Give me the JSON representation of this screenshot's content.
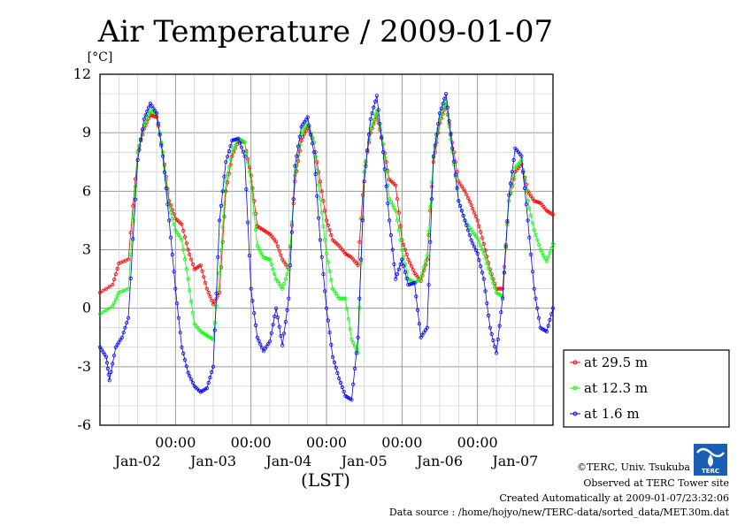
{
  "chart_data": {
    "type": "line",
    "title": "Air Temperature / 2009-01-07",
    "ylabel": "[°C]",
    "xlabel": "(LST)",
    "ylim": [
      -6,
      12
    ],
    "y_ticks": [
      "12",
      "9",
      "6",
      "3",
      "0",
      "-3",
      "-6"
    ],
    "x_time_ticks": [
      "00:00",
      "00:00",
      "00:00",
      "00:00",
      "00:00"
    ],
    "x_date_ticks": [
      "Jan-02",
      "Jan-03",
      "Jan-04",
      "Jan-05",
      "Jan-06",
      "Jan-07"
    ],
    "x_range_hours": [
      0,
      144
    ],
    "grid": true,
    "legend_position": "right",
    "series": [
      {
        "name": "at 29.5 m",
        "color": "#ff0000",
        "points": [
          [
            0,
            0.8
          ],
          [
            4,
            1.2
          ],
          [
            6,
            2.3
          ],
          [
            9,
            2.5
          ],
          [
            12,
            8.0
          ],
          [
            14,
            9.2
          ],
          [
            16,
            9.9
          ],
          [
            18,
            9.8
          ],
          [
            20,
            8.0
          ],
          [
            22,
            5.5
          ],
          [
            24,
            4.6
          ],
          [
            26,
            4.3
          ],
          [
            28,
            3.0
          ],
          [
            30,
            2.0
          ],
          [
            32,
            2.2
          ],
          [
            34,
            1.0
          ],
          [
            36,
            0.2
          ],
          [
            38,
            0.8
          ],
          [
            40,
            6.0
          ],
          [
            42,
            7.8
          ],
          [
            44,
            8.6
          ],
          [
            46,
            8.5
          ],
          [
            48,
            6.8
          ],
          [
            50,
            4.2
          ],
          [
            52,
            4.0
          ],
          [
            54,
            3.8
          ],
          [
            56,
            3.4
          ],
          [
            58,
            2.5
          ],
          [
            60,
            2.0
          ],
          [
            62,
            6.5
          ],
          [
            64,
            8.6
          ],
          [
            66,
            9.3
          ],
          [
            68,
            8.5
          ],
          [
            70,
            6.5
          ],
          [
            72,
            4.5
          ],
          [
            74,
            3.5
          ],
          [
            76,
            3.2
          ],
          [
            78,
            2.8
          ],
          [
            80,
            2.6
          ],
          [
            82,
            2.2
          ],
          [
            84,
            7.0
          ],
          [
            86,
            9.0
          ],
          [
            88,
            9.9
          ],
          [
            90,
            8.4
          ],
          [
            92,
            6.6
          ],
          [
            94,
            6.3
          ],
          [
            96,
            3.5
          ],
          [
            98,
            2.5
          ],
          [
            100,
            1.8
          ],
          [
            102,
            1.4
          ],
          [
            104,
            2.5
          ],
          [
            106,
            7.5
          ],
          [
            108,
            9.5
          ],
          [
            110,
            10.4
          ],
          [
            112,
            8.5
          ],
          [
            114,
            6.5
          ],
          [
            116,
            6.0
          ],
          [
            118,
            5.3
          ],
          [
            120,
            4.5
          ],
          [
            122,
            3.3
          ],
          [
            124,
            2.0
          ],
          [
            126,
            1.0
          ],
          [
            128,
            1.0
          ],
          [
            130,
            5.5
          ],
          [
            132,
            7.0
          ],
          [
            134,
            7.4
          ],
          [
            136,
            6.0
          ],
          [
            138,
            5.5
          ],
          [
            140,
            5.4
          ],
          [
            142,
            5.0
          ],
          [
            144,
            4.8
          ]
        ]
      },
      {
        "name": "at 12.3 m",
        "color": "#00ff00",
        "points": [
          [
            0,
            -0.3
          ],
          [
            4,
            0.1
          ],
          [
            6,
            0.8
          ],
          [
            9,
            1.0
          ],
          [
            12,
            8.0
          ],
          [
            14,
            9.4
          ],
          [
            16,
            10.1
          ],
          [
            18,
            10.0
          ],
          [
            20,
            8.0
          ],
          [
            22,
            5.2
          ],
          [
            24,
            4.0
          ],
          [
            26,
            3.5
          ],
          [
            28,
            1.5
          ],
          [
            30,
            -0.8
          ],
          [
            32,
            -1.2
          ],
          [
            34,
            -1.4
          ],
          [
            36,
            -1.6
          ],
          [
            38,
            1.8
          ],
          [
            40,
            6.5
          ],
          [
            42,
            8.0
          ],
          [
            44,
            8.7
          ],
          [
            46,
            8.5
          ],
          [
            48,
            6.5
          ],
          [
            50,
            3.2
          ],
          [
            52,
            2.6
          ],
          [
            54,
            2.5
          ],
          [
            56,
            1.5
          ],
          [
            58,
            1.0
          ],
          [
            60,
            2.0
          ],
          [
            62,
            6.8
          ],
          [
            64,
            8.9
          ],
          [
            66,
            9.5
          ],
          [
            68,
            8.5
          ],
          [
            70,
            5.6
          ],
          [
            72,
            2.8
          ],
          [
            74,
            1.0
          ],
          [
            76,
            0.5
          ],
          [
            78,
            0.5
          ],
          [
            80,
            -1.6
          ],
          [
            82,
            -2.3
          ],
          [
            84,
            7.0
          ],
          [
            86,
            9.2
          ],
          [
            88,
            10.1
          ],
          [
            90,
            8.4
          ],
          [
            92,
            5.6
          ],
          [
            94,
            5.0
          ],
          [
            96,
            3.0
          ],
          [
            98,
            1.5
          ],
          [
            100,
            1.3
          ],
          [
            102,
            1.5
          ],
          [
            104,
            2.7
          ],
          [
            106,
            7.7
          ],
          [
            108,
            9.7
          ],
          [
            110,
            10.6
          ],
          [
            112,
            8.0
          ],
          [
            114,
            5.5
          ],
          [
            116,
            4.5
          ],
          [
            118,
            4.0
          ],
          [
            120,
            3.6
          ],
          [
            122,
            2.8
          ],
          [
            124,
            1.8
          ],
          [
            126,
            0.8
          ],
          [
            128,
            0.6
          ],
          [
            130,
            5.5
          ],
          [
            132,
            7.2
          ],
          [
            134,
            7.6
          ],
          [
            136,
            5.5
          ],
          [
            138,
            4.0
          ],
          [
            140,
            3.0
          ],
          [
            142,
            2.4
          ],
          [
            144,
            3.3
          ]
        ]
      },
      {
        "name": "at 1.6 m",
        "color": "#0000ff",
        "points": [
          [
            0,
            -2.0
          ],
          [
            2,
            -2.5
          ],
          [
            3,
            -3.7
          ],
          [
            5,
            -2.0
          ],
          [
            7,
            -1.5
          ],
          [
            9,
            -0.5
          ],
          [
            12,
            7.6
          ],
          [
            14,
            9.7
          ],
          [
            16,
            10.5
          ],
          [
            18,
            10.0
          ],
          [
            20,
            7.8
          ],
          [
            22,
            4.5
          ],
          [
            24,
            1.0
          ],
          [
            26,
            -2.0
          ],
          [
            28,
            -3.3
          ],
          [
            30,
            -4.0
          ],
          [
            32,
            -4.3
          ],
          [
            34,
            -4.1
          ],
          [
            36,
            -3.0
          ],
          [
            38,
            4.5
          ],
          [
            40,
            7.5
          ],
          [
            42,
            8.6
          ],
          [
            44,
            8.7
          ],
          [
            46,
            7.8
          ],
          [
            48,
            1.0
          ],
          [
            50,
            -1.5
          ],
          [
            52,
            -2.2
          ],
          [
            54,
            -1.7
          ],
          [
            56,
            0.0
          ],
          [
            58,
            -1.9
          ],
          [
            60,
            0.5
          ],
          [
            62,
            7.3
          ],
          [
            64,
            9.3
          ],
          [
            66,
            9.8
          ],
          [
            68,
            8.0
          ],
          [
            70,
            3.5
          ],
          [
            72,
            0.0
          ],
          [
            74,
            -2.5
          ],
          [
            76,
            -3.6
          ],
          [
            78,
            -4.5
          ],
          [
            80,
            -4.7
          ],
          [
            82,
            -1.5
          ],
          [
            84,
            6.5
          ],
          [
            86,
            9.7
          ],
          [
            88,
            10.9
          ],
          [
            90,
            8.0
          ],
          [
            92,
            4.5
          ],
          [
            94,
            1.5
          ],
          [
            96,
            2.5
          ],
          [
            98,
            1.2
          ],
          [
            100,
            1.3
          ],
          [
            102,
            -1.5
          ],
          [
            104,
            -1.0
          ],
          [
            106,
            7.8
          ],
          [
            108,
            10.0
          ],
          [
            110,
            11.0
          ],
          [
            112,
            8.2
          ],
          [
            114,
            5.5
          ],
          [
            116,
            4.5
          ],
          [
            118,
            3.5
          ],
          [
            120,
            2.8
          ],
          [
            122,
            1.5
          ],
          [
            124,
            -1.0
          ],
          [
            126,
            -2.3
          ],
          [
            128,
            0.5
          ],
          [
            130,
            5.8
          ],
          [
            132,
            8.2
          ],
          [
            134,
            7.8
          ],
          [
            136,
            4.5
          ],
          [
            138,
            1.0
          ],
          [
            140,
            -1.0
          ],
          [
            142,
            -1.2
          ],
          [
            144,
            0.0
          ]
        ]
      }
    ]
  },
  "footer": {
    "copyright": "©TERC, Univ. Tsukuba",
    "observed": "Observed at TERC Tower site",
    "created": "Created Automatically at 2009-01-07/23:32:06",
    "source": "Data source : /home/hojyo/new/TERC-data/sorted_data/MET.30m.dat"
  },
  "logo": {
    "text": "TERC"
  }
}
